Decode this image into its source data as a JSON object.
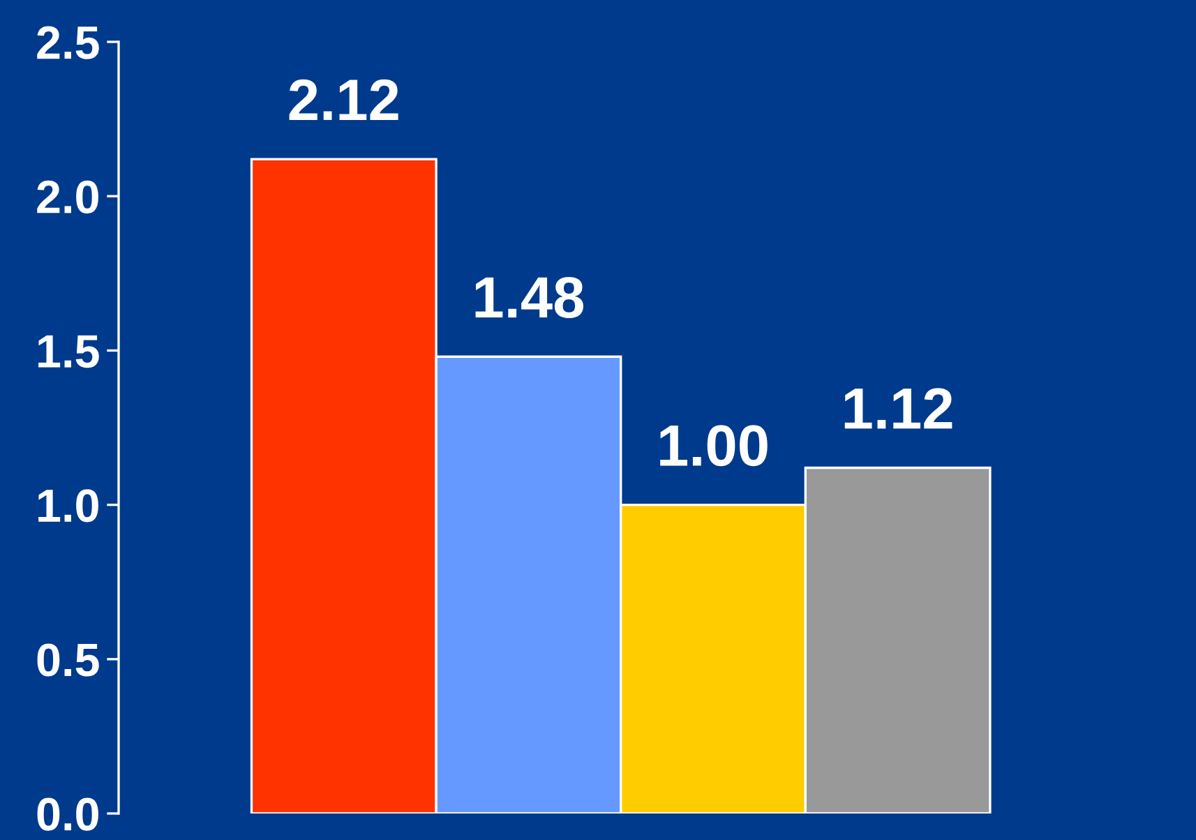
{
  "chart_data": {
    "type": "bar",
    "categories": [
      null,
      null,
      null,
      null
    ],
    "values": [
      2.12,
      1.48,
      1.0,
      1.12
    ],
    "colors": [
      "#ff3300",
      "#6699ff",
      "#ffcc00",
      "#999999"
    ],
    "value_labels": [
      "2.12",
      "1.48",
      "1.00",
      "1.12"
    ],
    "ylim": [
      0,
      2.5
    ],
    "yticks": [
      {
        "value": 0,
        "label": "0.0"
      },
      {
        "value": 0.5,
        "label": "0.5"
      },
      {
        "value": 1.0,
        "label": "1.0"
      },
      {
        "value": 1.5,
        "label": "1.5"
      },
      {
        "value": 2.0,
        "label": "2.0"
      },
      {
        "value": 2.5,
        "label": "2.5"
      }
    ],
    "grid": false,
    "legend": false
  }
}
